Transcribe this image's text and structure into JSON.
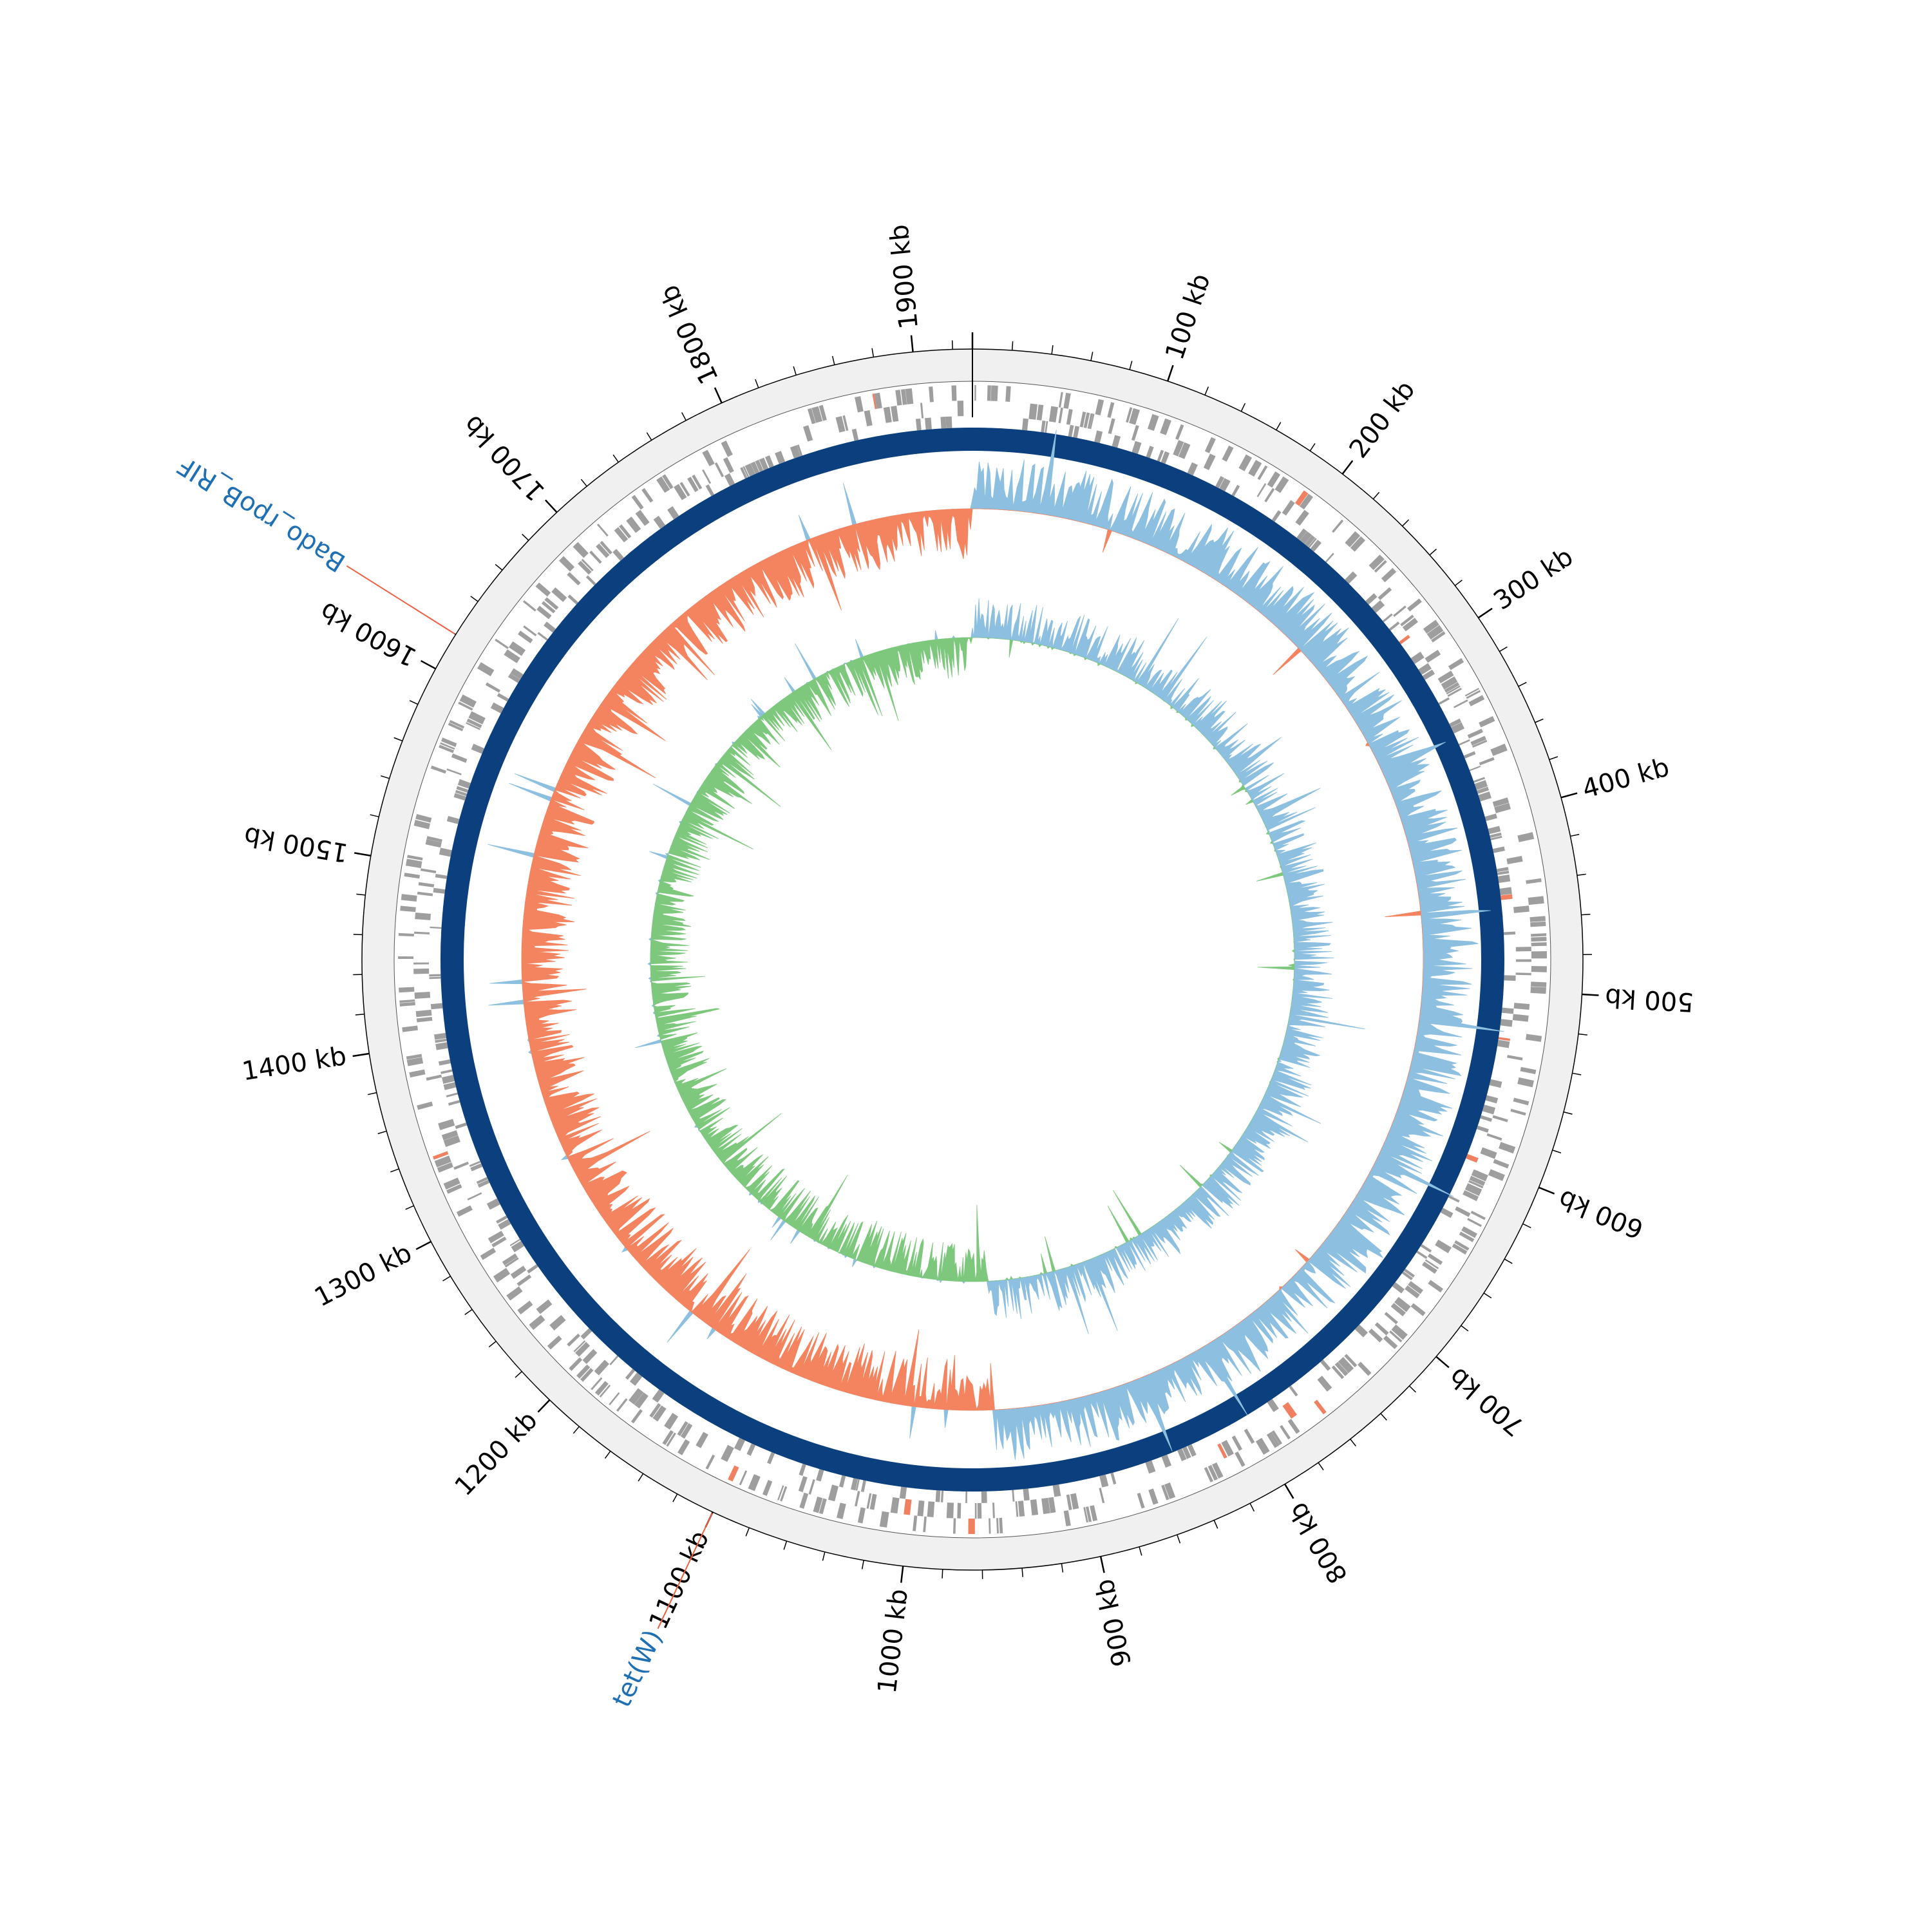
{
  "genome_plot": {
    "type": "circular-genome-map",
    "genome_length_kb": 1930,
    "major_tick_labels": [
      {
        "kb": 100,
        "label": "100 kb"
      },
      {
        "kb": 200,
        "label": "200 kb"
      },
      {
        "kb": 300,
        "label": "300 kb"
      },
      {
        "kb": 400,
        "label": "400 kb"
      },
      {
        "kb": 500,
        "label": "500 kb"
      },
      {
        "kb": 600,
        "label": "600 kb"
      },
      {
        "kb": 700,
        "label": "700 kb"
      },
      {
        "kb": 800,
        "label": "800 kb"
      },
      {
        "kb": 900,
        "label": "900 kb"
      },
      {
        "kb": 1000,
        "label": "1000 kb"
      },
      {
        "kb": 1100,
        "label": "1100 kb"
      },
      {
        "kb": 1200,
        "label": "1200 kb"
      },
      {
        "kb": 1300,
        "label": "1300 kb"
      },
      {
        "kb": 1400,
        "label": "1400 kb"
      },
      {
        "kb": 1500,
        "label": "1500 kb"
      },
      {
        "kb": 1600,
        "label": "1600 kb"
      },
      {
        "kb": 1700,
        "label": "1700 kb"
      },
      {
        "kb": 1800,
        "label": "1800 kb"
      },
      {
        "kb": 1900,
        "label": "1900 kb"
      }
    ],
    "minor_tick_interval_kb": 20,
    "annotations": [
      {
        "label": "Bado_rpoB_RIF",
        "kb": 1620
      },
      {
        "label": "tet(W)",
        "kb": 1100
      }
    ],
    "colors": {
      "outer_band": "#f0f0f0",
      "cds": "#9e9e9e",
      "cds_highlight": "#f08060",
      "backbone": "#0b3f7d",
      "gc_content_positive": "#8cbfe0",
      "gc_content_negative": "#f4845f",
      "gc_skew_positive": "#8cbfe0",
      "gc_skew_negative": "#7ec87e",
      "annotation_line": "#f06040",
      "annotation_text": "#1f6fb4"
    }
  }
}
